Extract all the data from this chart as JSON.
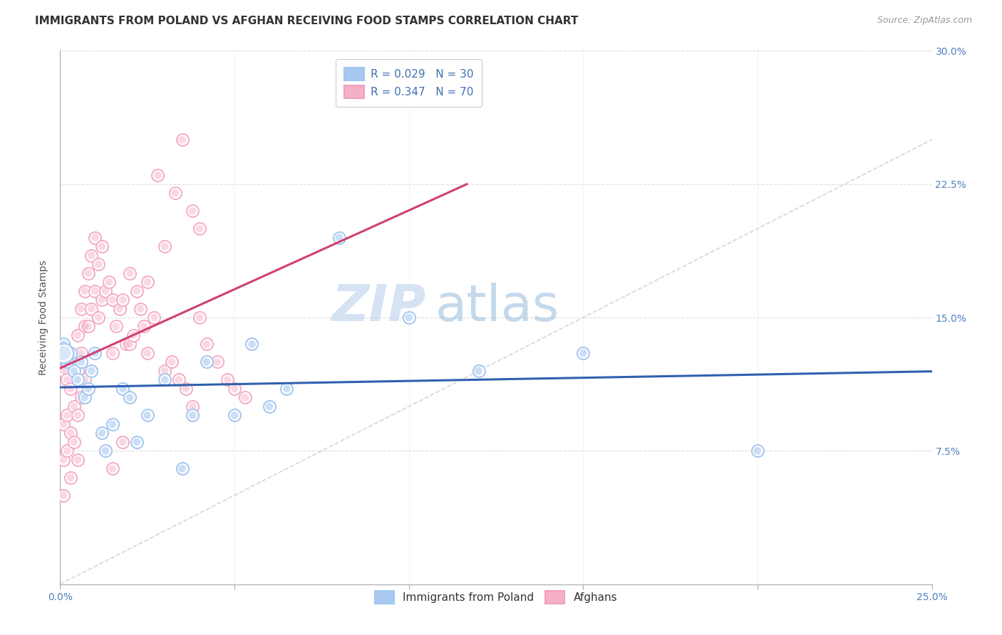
{
  "title": "IMMIGRANTS FROM POLAND VS AFGHAN RECEIVING FOOD STAMPS CORRELATION CHART",
  "source": "Source: ZipAtlas.com",
  "ylabel": "Receiving Food Stamps",
  "xlim": [
    0.0,
    0.25
  ],
  "ylim": [
    0.0,
    0.3
  ],
  "x_ticks": [
    0.0,
    0.05,
    0.1,
    0.15,
    0.2,
    0.25
  ],
  "y_ticks": [
    0.0,
    0.075,
    0.15,
    0.225,
    0.3
  ],
  "x_tick_labels": [
    "0.0%",
    "",
    "",
    "",
    "",
    "25.0%"
  ],
  "y_tick_labels_right": [
    "",
    "7.5%",
    "15.0%",
    "22.5%",
    "30.0%"
  ],
  "poland_color": "#a8c8f0",
  "afghan_color": "#f5b0c8",
  "poland_line_color": "#3060b0",
  "afghan_line_color": "#d04070",
  "diagonal_color": "#cccccc",
  "background_color": "#ffffff",
  "grid_color": "#dddddd",
  "watermark_zip": "ZIP",
  "watermark_atlas": "atlas",
  "title_fontsize": 11,
  "axis_label_fontsize": 10,
  "tick_fontsize": 10,
  "legend_fontsize": 11,
  "marker_size": 100,
  "poland_x": [
    0.001,
    0.002,
    0.003,
    0.004,
    0.005,
    0.006,
    0.007,
    0.008,
    0.009,
    0.01,
    0.012,
    0.013,
    0.015,
    0.018,
    0.02,
    0.022,
    0.025,
    0.03,
    0.035,
    0.038,
    0.042,
    0.05,
    0.055,
    0.06,
    0.065,
    0.08,
    0.1,
    0.12,
    0.15,
    0.2
  ],
  "poland_y": [
    0.135,
    0.125,
    0.13,
    0.12,
    0.115,
    0.125,
    0.105,
    0.11,
    0.12,
    0.13,
    0.085,
    0.075,
    0.09,
    0.11,
    0.105,
    0.08,
    0.095,
    0.115,
    0.065,
    0.095,
    0.125,
    0.095,
    0.135,
    0.1,
    0.11,
    0.195,
    0.15,
    0.12,
    0.13,
    0.075
  ],
  "afghan_x": [
    0.001,
    0.001,
    0.001,
    0.001,
    0.002,
    0.002,
    0.002,
    0.003,
    0.003,
    0.003,
    0.003,
    0.004,
    0.004,
    0.004,
    0.005,
    0.005,
    0.005,
    0.005,
    0.006,
    0.006,
    0.006,
    0.007,
    0.007,
    0.007,
    0.008,
    0.008,
    0.009,
    0.009,
    0.01,
    0.01,
    0.011,
    0.011,
    0.012,
    0.012,
    0.013,
    0.014,
    0.015,
    0.015,
    0.016,
    0.017,
    0.018,
    0.019,
    0.02,
    0.021,
    0.022,
    0.023,
    0.024,
    0.025,
    0.027,
    0.03,
    0.032,
    0.034,
    0.036,
    0.038,
    0.04,
    0.042,
    0.045,
    0.048,
    0.05,
    0.053,
    0.035,
    0.028,
    0.033,
    0.04,
    0.038,
    0.03,
    0.025,
    0.02,
    0.018,
    0.015
  ],
  "afghan_y": [
    0.12,
    0.09,
    0.07,
    0.05,
    0.115,
    0.095,
    0.075,
    0.13,
    0.11,
    0.085,
    0.06,
    0.12,
    0.1,
    0.08,
    0.14,
    0.12,
    0.095,
    0.07,
    0.155,
    0.13,
    0.105,
    0.165,
    0.145,
    0.115,
    0.175,
    0.145,
    0.185,
    0.155,
    0.195,
    0.165,
    0.18,
    0.15,
    0.19,
    0.16,
    0.165,
    0.17,
    0.16,
    0.13,
    0.145,
    0.155,
    0.16,
    0.135,
    0.135,
    0.14,
    0.165,
    0.155,
    0.145,
    0.13,
    0.15,
    0.12,
    0.125,
    0.115,
    0.11,
    0.1,
    0.15,
    0.135,
    0.125,
    0.115,
    0.11,
    0.105,
    0.25,
    0.23,
    0.22,
    0.2,
    0.21,
    0.19,
    0.17,
    0.175,
    0.08,
    0.065
  ]
}
